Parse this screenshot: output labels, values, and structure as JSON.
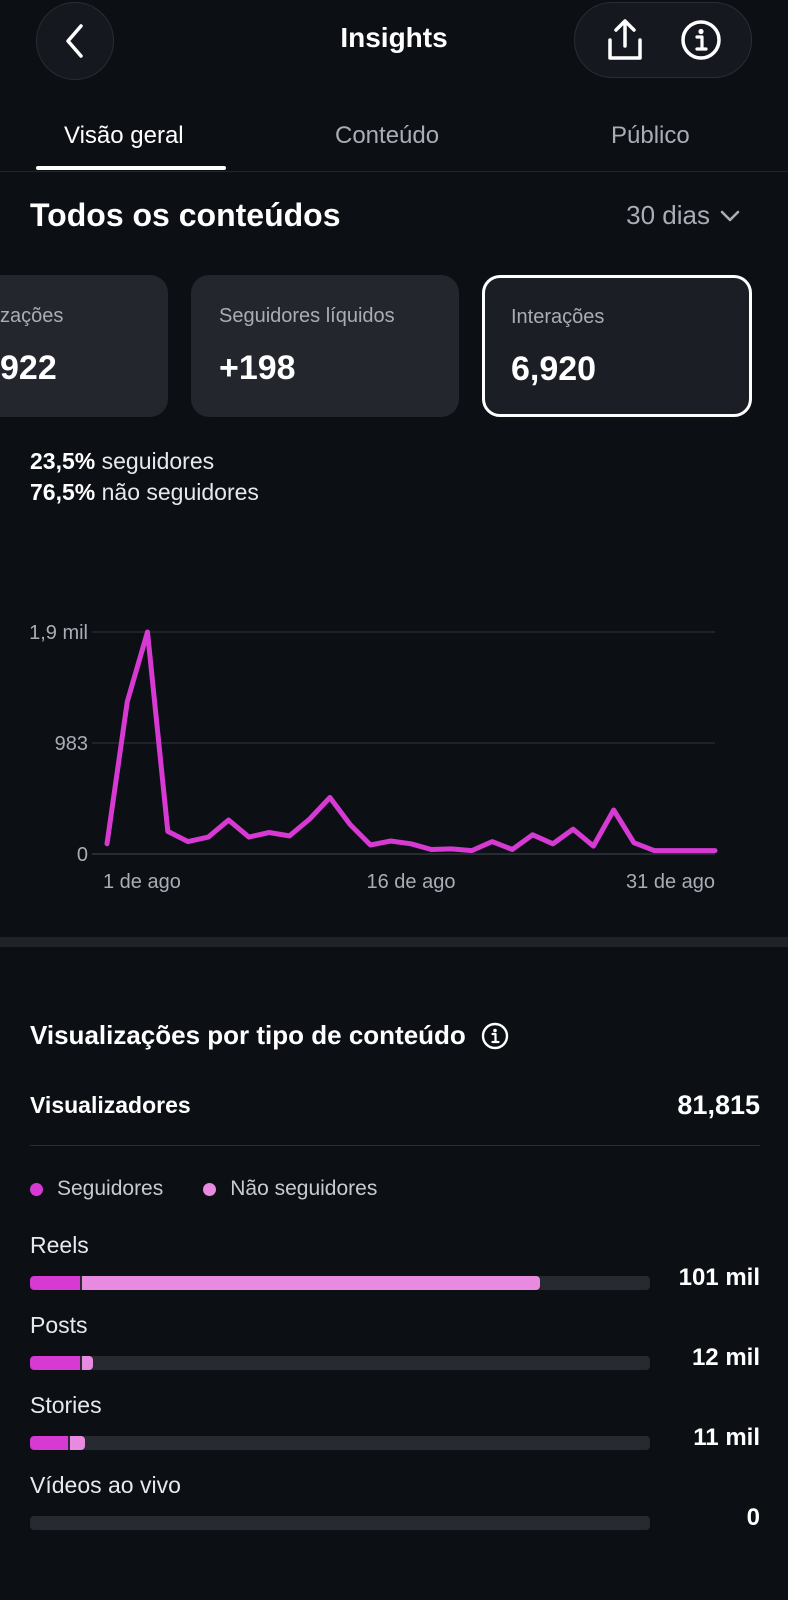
{
  "header": {
    "title": "Insights",
    "back_icon": "chevron-left-icon",
    "share_icon": "share-icon",
    "info_icon": "info-icon"
  },
  "tabs": [
    {
      "label": "Visão geral",
      "active": true
    },
    {
      "label": "Conteúdo",
      "active": false
    },
    {
      "label": "Público",
      "active": false
    }
  ],
  "section": {
    "title": "Todos os conteúdos",
    "range": "30 dias"
  },
  "cards": [
    {
      "label": "zações",
      "value": "922",
      "selected": false
    },
    {
      "label": "Seguidores líquidos",
      "value": "+198",
      "selected": false
    },
    {
      "label": "Interações",
      "value": "6,920",
      "selected": true
    }
  ],
  "breakdown": {
    "followers_pct": "23,5%",
    "followers_label": "seguidores",
    "non_followers_pct": "76,5%",
    "non_followers_label": "não seguidores"
  },
  "chart_data": {
    "type": "line",
    "x": [
      "1 de ago",
      "2",
      "3",
      "4",
      "5",
      "6",
      "7",
      "8",
      "9",
      "10",
      "11",
      "12",
      "13",
      "14",
      "15",
      "16 de ago",
      "17",
      "18",
      "19",
      "20",
      "21",
      "22",
      "23",
      "24",
      "25",
      "26",
      "27",
      "28",
      "29",
      "30",
      "31 de ago"
    ],
    "x_tick_labels": [
      "1 de ago",
      "16 de ago",
      "31 de ago"
    ],
    "y_tick_labels": [
      "0",
      "983",
      "1,9 mil"
    ],
    "ylim": [
      0,
      1966
    ],
    "grid": true,
    "series": [
      {
        "color": "#d63ad3",
        "values": [
          90,
          1350,
          1966,
          200,
          110,
          150,
          300,
          150,
          190,
          160,
          310,
          500,
          260,
          80,
          115,
          90,
          40,
          45,
          30,
          110,
          40,
          170,
          90,
          220,
          70,
          390,
          100,
          30,
          30,
          30,
          30
        ]
      }
    ]
  },
  "views": {
    "title": "Visualizações por tipo de conteúdo",
    "info_icon": "info-icon",
    "viewers_label": "Visualizadores",
    "viewers_value": "81,815",
    "legend": [
      {
        "label": "Seguidores",
        "color": "#d63ad3"
      },
      {
        "label": "Não seguidores",
        "color": "#e88ae0"
      }
    ],
    "types": [
      {
        "label": "Reels",
        "value": "101 mil",
        "followers_share": 0.08,
        "non_followers_share": 0.74
      },
      {
        "label": "Posts",
        "value": "12 mil",
        "followers_share": 0.08,
        "non_followers_share": 0.018
      },
      {
        "label": "Stories",
        "value": "11 mil",
        "followers_share": 0.062,
        "non_followers_share": 0.024
      },
      {
        "label": "Vídeos ao vivo",
        "value": "0",
        "followers_share": 0,
        "non_followers_share": 0
      }
    ]
  }
}
